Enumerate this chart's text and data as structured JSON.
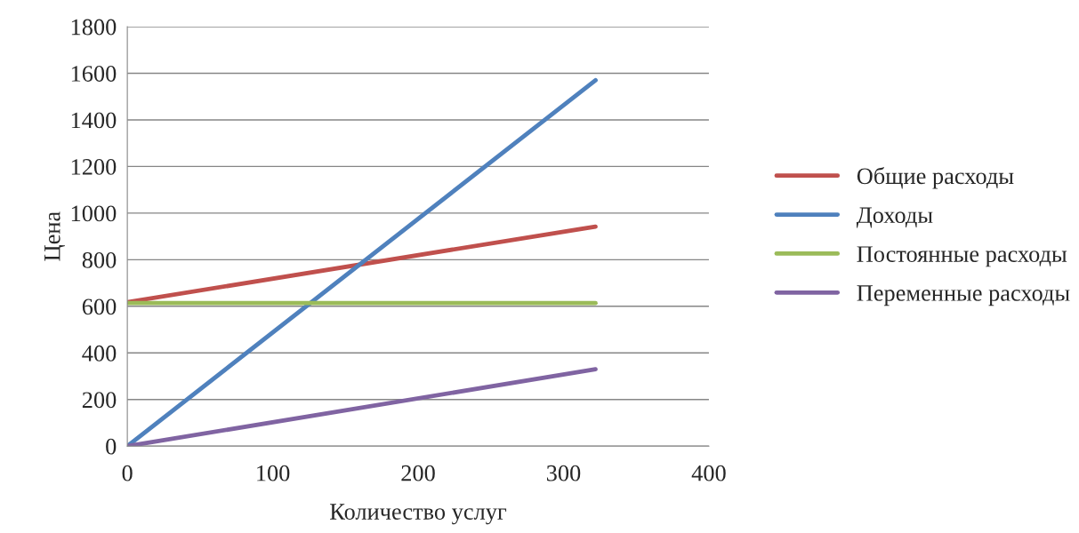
{
  "chart_data": {
    "type": "line",
    "xlabel": "Количество услуг",
    "ylabel": "Цена",
    "x": [
      0,
      322
    ],
    "series": [
      {
        "name": "Общие расходы",
        "color": "#c0504d",
        "values": [
          618,
          942
        ]
      },
      {
        "name": "Доходы",
        "color": "#4f81bd",
        "values": [
          0,
          1570
        ]
      },
      {
        "name": "Постоянные расходы",
        "color": "#9bbb59",
        "values": [
          614,
          614
        ]
      },
      {
        "name": "Переменные расходы",
        "color": "#8064a2",
        "values": [
          0,
          330
        ]
      }
    ],
    "xlim": [
      0,
      400
    ],
    "xticks": [
      0,
      100,
      200,
      300,
      400
    ],
    "ylim": [
      0,
      1800
    ],
    "yticks": [
      0,
      200,
      400,
      600,
      800,
      1000,
      1200,
      1400,
      1600,
      1800
    ],
    "grid": "y",
    "legend": "right",
    "marker": "none",
    "line_style": "solid"
  }
}
